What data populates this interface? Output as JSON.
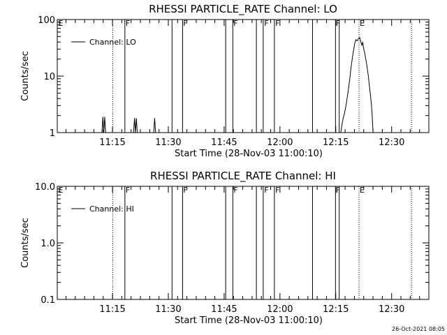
{
  "footer": {
    "timestamp": "26-Oct-2021 08:05"
  },
  "flag_lines": {
    "solid": [
      "11:18:20",
      "11:31:00",
      "11:33:50",
      "11:45:25",
      "11:47:20",
      "11:53:40",
      "11:55:30",
      "11:58:30",
      "12:08:45",
      "12:14:55",
      "12:15:55"
    ],
    "dotted": [
      "11:15:05",
      "12:21:15",
      "12:35:20"
    ],
    "labels": [
      {
        "text": "E",
        "t": "11:00:25"
      },
      {
        "text": "F",
        "t": "11:18:30"
      },
      {
        "text": "F",
        "t": "11:34:00"
      },
      {
        "text": "F",
        "t": "11:47:30"
      },
      {
        "text": "F",
        "t": "11:55:45"
      },
      {
        "text": "F",
        "t": "11:58:45"
      },
      {
        "text": "F",
        "t": "12:15:00"
      },
      {
        "text": "E",
        "t": "12:21:25"
      }
    ]
  },
  "chart_data": [
    {
      "type": "line",
      "title": "RHESSI PARTICLE_RATE Channel: LO",
      "xlabel": "Start Time (28-Nov-03 11:00:10)",
      "ylabel": "Counts/sec",
      "yscale": "log",
      "ylim": [
        1,
        100
      ],
      "xlim": [
        "11:00:10",
        "12:40:00"
      ],
      "yticks": [
        "1",
        "10",
        "100"
      ],
      "xticks": [
        "11:15",
        "11:30",
        "11:45",
        "12:00",
        "12:15",
        "12:30"
      ],
      "grid": false,
      "legend_position": "top-left",
      "series": [
        {
          "name": "Channel: LO",
          "points": [
            [
              "11:12:10",
              1.0
            ],
            [
              "11:12:25",
              1.9
            ],
            [
              "11:12:40",
              1.0
            ],
            [
              "11:12:55",
              1.9
            ],
            [
              "11:13:10",
              1.0
            ],
            [
              "11:20:40",
              1.0
            ],
            [
              "11:20:55",
              1.8
            ],
            [
              "11:21:10",
              1.0
            ],
            [
              "11:21:25",
              1.8
            ],
            [
              "11:21:40",
              1.0
            ],
            [
              "11:26:05",
              1.0
            ],
            [
              "11:26:20",
              1.8
            ],
            [
              "11:26:35",
              1.0
            ],
            [
              "12:16:20",
              1.0
            ],
            [
              "12:16:40",
              1.4
            ],
            [
              "12:17:00",
              1.8
            ],
            [
              "12:17:20",
              2.2
            ],
            [
              "12:17:45",
              3.0
            ],
            [
              "12:18:05",
              4.2
            ],
            [
              "12:18:25",
              6.0
            ],
            [
              "12:18:45",
              9.0
            ],
            [
              "12:19:05",
              14.0
            ],
            [
              "12:19:25",
              20.0
            ],
            [
              "12:19:45",
              28.0
            ],
            [
              "12:20:05",
              38.0
            ],
            [
              "12:20:25",
              44.0
            ],
            [
              "12:20:45",
              42.0
            ],
            [
              "12:21:05",
              46.0
            ],
            [
              "12:21:25",
              48.0
            ],
            [
              "12:21:45",
              40.0
            ],
            [
              "12:22:00",
              35.0
            ],
            [
              "12:22:15",
              40.0
            ],
            [
              "12:22:30",
              30.0
            ],
            [
              "12:22:45",
              26.0
            ],
            [
              "12:23:00",
              21.0
            ],
            [
              "12:23:15",
              17.0
            ],
            [
              "12:23:30",
              13.0
            ],
            [
              "12:23:45",
              10.0
            ],
            [
              "12:24:00",
              7.0
            ],
            [
              "12:24:15",
              5.0
            ],
            [
              "12:24:30",
              3.5
            ],
            [
              "12:24:45",
              2.2
            ],
            [
              "12:25:00",
              1.0
            ]
          ]
        }
      ]
    },
    {
      "type": "line",
      "title": "RHESSI PARTICLE_RATE Channel: HI",
      "xlabel": "Start Time (28-Nov-03 11:00:10)",
      "ylabel": "Counts/sec",
      "yscale": "log",
      "ylim": [
        0.1,
        10
      ],
      "xlim": [
        "11:00:10",
        "12:40:00"
      ],
      "yticks": [
        "0.1",
        "1.0",
        "10.0"
      ],
      "xticks": [
        "11:15",
        "11:30",
        "11:45",
        "12:00",
        "12:15",
        "12:30"
      ],
      "grid": false,
      "legend_position": "top-left",
      "series": [
        {
          "name": "Channel: HI",
          "points": []
        }
      ]
    }
  ]
}
